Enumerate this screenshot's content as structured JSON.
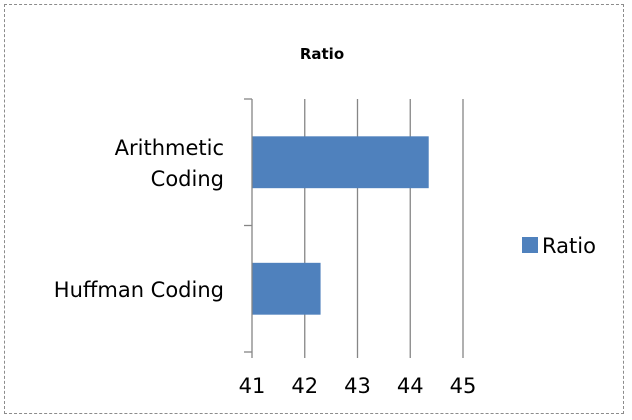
{
  "chart_data": {
    "type": "bar",
    "orientation": "horizontal",
    "title": "Ratio",
    "categories": [
      "Arithmetic Coding",
      "Huffman Coding"
    ],
    "category_label_lines": [
      [
        "Arithmetic",
        "Coding"
      ],
      [
        "Huffman Coding"
      ]
    ],
    "series": [
      {
        "name": "Ratio",
        "values": [
          44.35,
          42.3
        ]
      }
    ],
    "xlim": [
      41,
      45
    ],
    "xticks": [
      "41",
      "42",
      "43",
      "44",
      "45"
    ],
    "grid": true,
    "legend": "right",
    "colors": {
      "bar": "#4f81bd",
      "grid": "#868686",
      "axis": "#868686"
    }
  }
}
